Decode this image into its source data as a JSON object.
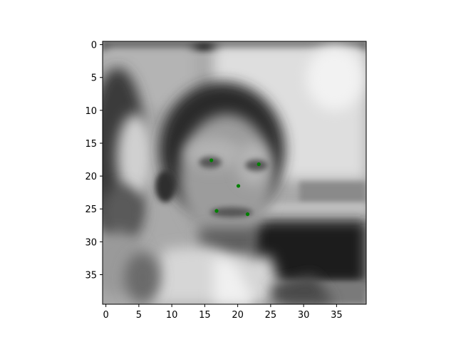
{
  "chart_data": {
    "type": "scatter",
    "title": "",
    "xlabel": "",
    "ylabel": "",
    "xlim": [
      -0.5,
      39.5
    ],
    "ylim": [
      39.5,
      -0.5
    ],
    "y_inverted": true,
    "grid": false,
    "x_ticks": [
      0,
      5,
      10,
      15,
      20,
      25,
      30,
      35
    ],
    "y_ticks": [
      0,
      5,
      10,
      15,
      20,
      25,
      30,
      35
    ],
    "x_tick_labels": [
      "0",
      "5",
      "10",
      "15",
      "20",
      "25",
      "30",
      "35"
    ],
    "y_tick_labels": [
      "0",
      "5",
      "10",
      "15",
      "20",
      "25",
      "30",
      "35"
    ],
    "background_image": "grayscale blurred face photo",
    "series": [
      {
        "marker_color": "#008000",
        "points": [
          {
            "x": 16.0,
            "y": 17.6
          },
          {
            "x": 23.2,
            "y": 18.2
          },
          {
            "x": 20.1,
            "y": 21.5
          },
          {
            "x": 16.8,
            "y": 25.3
          },
          {
            "x": 21.5,
            "y": 25.8
          }
        ]
      }
    ]
  }
}
